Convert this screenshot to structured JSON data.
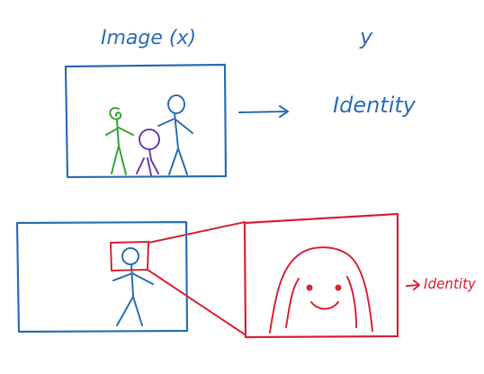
{
  "top_row": {
    "input_label": "Image (x)",
    "output_label": "y",
    "result_label": "Identity"
  },
  "bottom_row": {
    "result_label": "Identity"
  },
  "colors": {
    "blue": "#2f6fb5",
    "green": "#3aa63a",
    "purple": "#6a3fb5",
    "red": "#d8263a"
  }
}
